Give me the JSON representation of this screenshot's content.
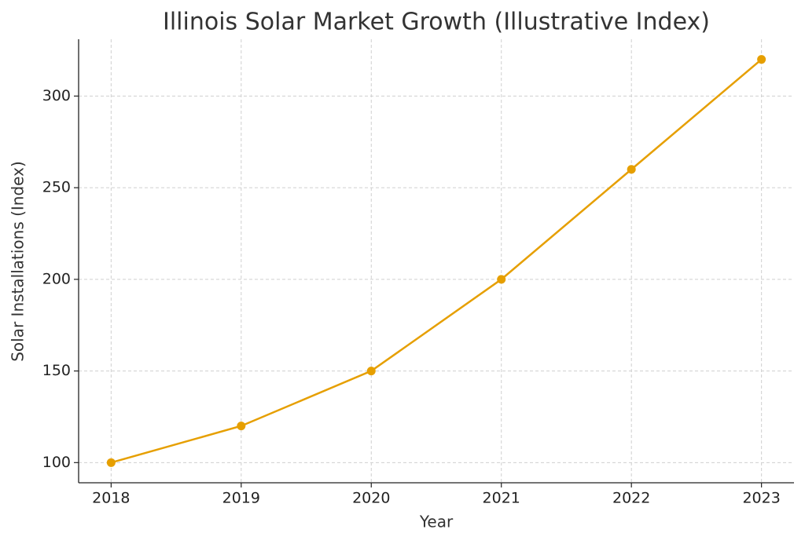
{
  "chart_data": {
    "type": "line",
    "title": "Illinois Solar Market Growth (Illustrative Index)",
    "x_label": "Year",
    "y_label": "Solar Installations (Index)",
    "x": [
      2018,
      2019,
      2020,
      2021,
      2022,
      2023
    ],
    "series": [
      {
        "name": "Solar Installations",
        "color": "#e69f00",
        "values": [
          100,
          120,
          150,
          200,
          260,
          320
        ]
      }
    ],
    "xlim": [
      2017.75,
      2023.25
    ],
    "xticks": [
      2018,
      2019,
      2020,
      2021,
      2022,
      2023
    ],
    "ylim": [
      89,
      331
    ],
    "yticks": [
      100,
      150,
      200,
      250,
      300
    ],
    "grid": true
  }
}
